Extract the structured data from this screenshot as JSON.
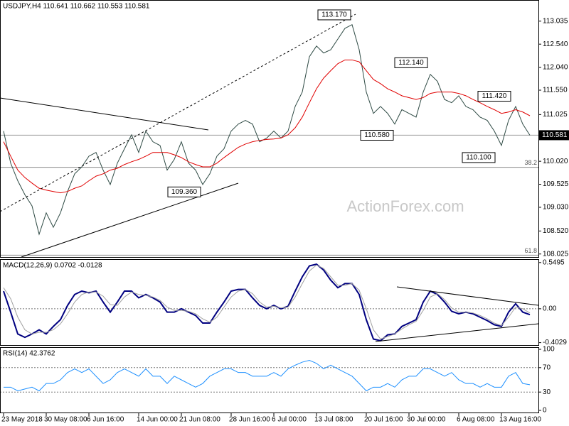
{
  "chart_data": [
    {
      "type": "line",
      "title": "USDJPY,H4  110.641 110.662 110.553 110.581",
      "categories": [
        "23 May 2018",
        null,
        null,
        null,
        null,
        null,
        "30 May 08:00",
        null,
        null,
        null,
        null,
        null,
        "6 Jun 16:00",
        null,
        null,
        null,
        null,
        null,
        null,
        "14 Jun 00:00",
        null,
        null,
        null,
        null,
        null,
        "21 Jun 08:00",
        null,
        null,
        null,
        null,
        null,
        null,
        "28 Jun 16:00",
        null,
        null,
        null,
        null,
        null,
        "6 Jul 00:00",
        null,
        null,
        null,
        null,
        null,
        "13 Jul 08:00",
        null,
        null,
        null,
        null,
        null,
        null,
        "20 Jul 16:00",
        null,
        null,
        null,
        null,
        null,
        "30 Jul 00:00",
        null,
        null,
        null,
        null,
        null,
        null,
        "6 Aug 08:00",
        null,
        null,
        null,
        null,
        null,
        "13 Aug 16:00",
        null,
        null,
        null,
        null
      ],
      "series": [
        {
          "color": "#2e4a44",
          "values": [
            110.67,
            109.98,
            109.6,
            109.3,
            109.06,
            108.45,
            108.91,
            108.6,
            108.91,
            109.37,
            109.75,
            109.9,
            110.13,
            110.21,
            109.83,
            109.52,
            109.98,
            110.29,
            110.59,
            110.21,
            110.67,
            110.44,
            110.36,
            109.83,
            110.06,
            110.44,
            109.98,
            109.83,
            109.52,
            109.75,
            110.13,
            110.29,
            110.67,
            110.82,
            110.9,
            110.82,
            110.44,
            110.52,
            110.67,
            110.52,
            110.67,
            111.2,
            111.51,
            112.27,
            112.5,
            112.35,
            112.42,
            112.65,
            112.88,
            112.96,
            112.42,
            111.51,
            111.05,
            111.2,
            111.05,
            110.82,
            111.13,
            111.05,
            110.97,
            111.51,
            111.89,
            111.74,
            111.35,
            111.28,
            111.43,
            111.2,
            111.13,
            110.97,
            110.9,
            110.67,
            110.36,
            110.9,
            111.2,
            110.82,
            110.58
          ]
        },
        {
          "color": "#e00000",
          "values": [
            110.44,
            110.13,
            109.83,
            109.67,
            109.55,
            109.44,
            109.4,
            109.37,
            109.34,
            109.37,
            109.44,
            109.49,
            109.6,
            109.7,
            109.75,
            109.83,
            109.87,
            109.95,
            110.01,
            110.06,
            110.13,
            110.21,
            110.21,
            110.21,
            110.16,
            110.1,
            110.01,
            109.95,
            109.9,
            109.9,
            109.98,
            110.1,
            110.21,
            110.32,
            110.39,
            110.44,
            110.47,
            110.49,
            110.5,
            110.52,
            110.59,
            110.74,
            110.97,
            111.28,
            111.58,
            111.81,
            111.97,
            112.12,
            112.2,
            112.2,
            112.16,
            111.97,
            111.78,
            111.69,
            111.58,
            111.51,
            111.43,
            111.39,
            111.35,
            111.39,
            111.48,
            111.51,
            111.51,
            111.51,
            111.48,
            111.43,
            111.35,
            111.28,
            111.2,
            111.13,
            111.05,
            111.08,
            111.13,
            111.08,
            111.0
          ]
        }
      ],
      "ylim": [
        107.96,
        113.49
      ],
      "yticks": [
        113.035,
        {
          "value": 112.54,
          "label": "112.540"
        },
        {
          "value": 112.04,
          "label": "112.040"
        },
        {
          "value": 111.55,
          "label": "111.550"
        },
        111.025,
        {
          "value": 110.02,
          "label": "110.020"
        },
        109.525,
        {
          "value": 109.03,
          "label": "109.030"
        },
        {
          "value": 108.52,
          "label": "108.520"
        },
        108.025
      ],
      "last_price": 110.581,
      "annotations": [
        {
          "value": 113.17,
          "label": "113.170"
        },
        {
          "value": 112.14,
          "label": "112.140"
        },
        {
          "value": 111.42,
          "label": "111.420"
        },
        {
          "value": 110.58,
          "label": "110.580"
        },
        {
          "value": 110.1,
          "label": "110.100"
        },
        {
          "value": 109.36,
          "label": "109.360"
        }
      ],
      "fib_levels": [
        {
          "value": 109.89,
          "label": "38.2"
        },
        {
          "value": 108.0,
          "label": "61.8"
        }
      ],
      "watermark": "ActionForex.com"
    },
    {
      "type": "line",
      "title": "MACD(12,26,9) 0.0702 -0.0128",
      "series": [
        {
          "color": "#000080",
          "values": [
            0.21,
            -0.04,
            -0.3,
            -0.34,
            -0.3,
            -0.25,
            -0.3,
            -0.21,
            -0.13,
            0.04,
            0.17,
            0.21,
            0.19,
            0.21,
            0.08,
            -0.04,
            0.08,
            0.21,
            0.21,
            0.13,
            0.17,
            0.13,
            0.08,
            -0.04,
            -0.04,
            0,
            -0.04,
            -0.08,
            -0.17,
            -0.17,
            -0.04,
            0.08,
            0.21,
            0.23,
            0.23,
            0.13,
            0.04,
            0,
            0.04,
            0,
            0.03,
            0.21,
            0.38,
            0.51,
            0.53,
            0.46,
            0.34,
            0.25,
            0.3,
            0.3,
            0.17,
            -0.13,
            -0.36,
            -0.38,
            -0.31,
            -0.3,
            -0.21,
            -0.17,
            -0.13,
            0.08,
            0.21,
            0.17,
            0.08,
            -0.03,
            -0.06,
            -0.04,
            -0.06,
            -0.1,
            -0.14,
            -0.19,
            -0.21,
            -0.04,
            0.06,
            -0.04,
            -0.07
          ]
        },
        {
          "color": "#a0a0a0",
          "values": [
            0.25,
            0.12,
            -0.1,
            -0.25,
            -0.3,
            -0.28,
            -0.28,
            -0.25,
            -0.18,
            -0.06,
            0.08,
            0.17,
            0.2,
            0.2,
            0.15,
            0.05,
            0.04,
            0.14,
            0.2,
            0.17,
            0.16,
            0.14,
            0.1,
            0.02,
            -0.02,
            -0.02,
            -0.03,
            -0.06,
            -0.12,
            -0.16,
            -0.1,
            0.02,
            0.14,
            0.21,
            0.23,
            0.18,
            0.08,
            0.02,
            0.03,
            0.01,
            0.02,
            0.14,
            0.3,
            0.45,
            0.52,
            0.48,
            0.38,
            0.28,
            0.28,
            0.3,
            0.22,
            0.0,
            -0.25,
            -0.36,
            -0.33,
            -0.3,
            -0.24,
            -0.19,
            -0.15,
            -0.02,
            0.14,
            0.18,
            0.11,
            0.01,
            -0.04,
            -0.04,
            -0.05,
            -0.08,
            -0.12,
            -0.17,
            -0.2,
            -0.1,
            0.02,
            0.0,
            -0.05
          ]
        }
      ],
      "ylim": [
        -0.44,
        0.59
      ],
      "yticks": [
        0.5495,
        {
          "value": 0,
          "label": "0.00"
        },
        -0.4029
      ],
      "levels": [
        0
      ]
    },
    {
      "type": "line",
      "title": "RSI(14) 42.3762",
      "series": [
        {
          "color": "#1e90ff",
          "values": [
            38,
            38,
            32,
            35,
            38,
            32,
            44,
            44,
            50,
            62,
            68,
            62,
            68,
            56,
            44,
            50,
            62,
            68,
            62,
            56,
            68,
            56,
            56,
            44,
            56,
            50,
            44,
            38,
            44,
            56,
            62,
            68,
            68,
            62,
            62,
            56,
            56,
            56,
            62,
            56,
            68,
            74,
            79,
            82,
            77,
            68,
            74,
            68,
            62,
            56,
            44,
            32,
            38,
            38,
            44,
            38,
            50,
            56,
            56,
            68,
            68,
            62,
            56,
            62,
            50,
            44,
            44,
            38,
            44,
            38,
            38,
            56,
            62,
            44,
            42
          ]
        }
      ],
      "ylim": [
        0,
        100
      ],
      "yticks": [
        100,
        70,
        30,
        0
      ],
      "levels": [
        70,
        30
      ]
    }
  ]
}
